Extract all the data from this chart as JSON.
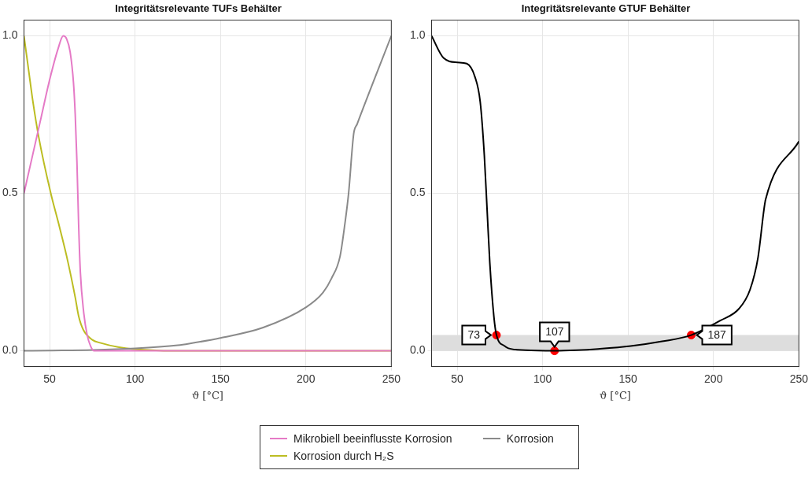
{
  "chart_data": [
    {
      "type": "line",
      "title": "Integritätsrelevante TUFs Behälter",
      "xlabel": "ϑ [°C]",
      "xlim": [
        35,
        250
      ],
      "xticks": [
        50,
        100,
        150,
        200,
        250
      ],
      "ylim": [
        -0.05,
        1.05
      ],
      "yticks": [
        {
          "value": 0,
          "label": "0.0"
        },
        {
          "value": 0.5,
          "label": "0.5"
        },
        {
          "value": 1,
          "label": "1.0"
        }
      ],
      "grid": true,
      "legend": "bottom",
      "marker": "none",
      "line_style": "solid",
      "series": [
        {
          "name": "Mikrobiell beeinflusste Korrosion",
          "color": "#e57ac6",
          "x": [
            35,
            40,
            45,
            50,
            55,
            58,
            60,
            62,
            64,
            65,
            66,
            67,
            68,
            70,
            72,
            74,
            76,
            80,
            250
          ],
          "values": [
            0.5,
            0.62,
            0.74,
            0.86,
            0.96,
            1.0,
            0.99,
            0.95,
            0.85,
            0.75,
            0.6,
            0.4,
            0.25,
            0.12,
            0.05,
            0.015,
            0.0,
            0.0,
            0.0
          ]
        },
        {
          "name": "Korrosion",
          "color": "#8a8a8a",
          "x": [
            35,
            50,
            75,
            100,
            125,
            131.6,
            150,
            175,
            200,
            210,
            215,
            220,
            223,
            225,
            228,
            230,
            250
          ],
          "values": [
            0,
            0.001,
            0.003,
            0.008,
            0.018,
            0.023,
            0.041,
            0.074,
            0.138,
            0.185,
            0.23,
            0.3,
            0.41,
            0.5,
            0.69,
            0.72,
            1.0
          ]
        },
        {
          "name": "Korrosion durch H₂S",
          "color": "#bcbd22",
          "x": [
            35,
            38,
            40,
            43.6,
            50.7,
            55,
            60,
            65,
            67,
            69.7,
            75,
            80,
            90,
            100,
            110,
            120,
            250
          ],
          "values": [
            1.0,
            0.88,
            0.8,
            0.68,
            0.5,
            0.41,
            0.3,
            0.17,
            0.11,
            0.067,
            0.035,
            0.025,
            0.012,
            0.005,
            0.002,
            0,
            0
          ]
        }
      ]
    },
    {
      "type": "line",
      "title": "Integritätsrelevante GTUF Behälter",
      "xlabel": "ϑ [°C]",
      "xlim": [
        35,
        250
      ],
      "xticks": [
        50,
        100,
        150,
        200,
        250
      ],
      "ylim": [
        -0.05,
        1.05
      ],
      "yticks": [
        {
          "value": 0,
          "label": "0.0"
        },
        {
          "value": 0.5,
          "label": "0.5"
        },
        {
          "value": 1,
          "label": "1.0"
        }
      ],
      "grid": true,
      "marker": "none",
      "line_style": "solid",
      "bands": [
        {
          "axis": "y",
          "from": 0,
          "to": 0.05,
          "color": "#dddddd"
        }
      ],
      "annotations": [
        {
          "text": "73",
          "x": 73,
          "y": 0.05
        },
        {
          "text": "107",
          "x": 107,
          "y": 0
        },
        {
          "text": "187",
          "x": 187,
          "y": 0.05
        }
      ],
      "series": [
        {
          "color": "#000000",
          "x": [
            35,
            42,
            50,
            55.6,
            60.4,
            63.5,
            65.9,
            67.5,
            69.1,
            71.5,
            73,
            77.8,
            80,
            90,
            107,
            120,
            132.5,
            151.5,
            170,
            187,
            204,
            215,
            221.4,
            226.1,
            229.6,
            230.5,
            250
          ],
          "values": [
            1.0,
            0.93,
            0.916,
            0.912,
            0.87,
            0.79,
            0.62,
            0.45,
            0.28,
            0.108,
            0.05,
            0.015,
            0.008,
            0.002,
            0,
            0.002,
            0.006,
            0.015,
            0.03,
            0.05,
            0.096,
            0.134,
            0.194,
            0.297,
            0.45,
            0.48,
            0.665
          ]
        },
        {
          "type": "scatter",
          "marker": "circle",
          "color": "#ff0000",
          "x": [
            73,
            107,
            187
          ],
          "values": [
            0.05,
            0,
            0.05
          ]
        }
      ]
    }
  ]
}
